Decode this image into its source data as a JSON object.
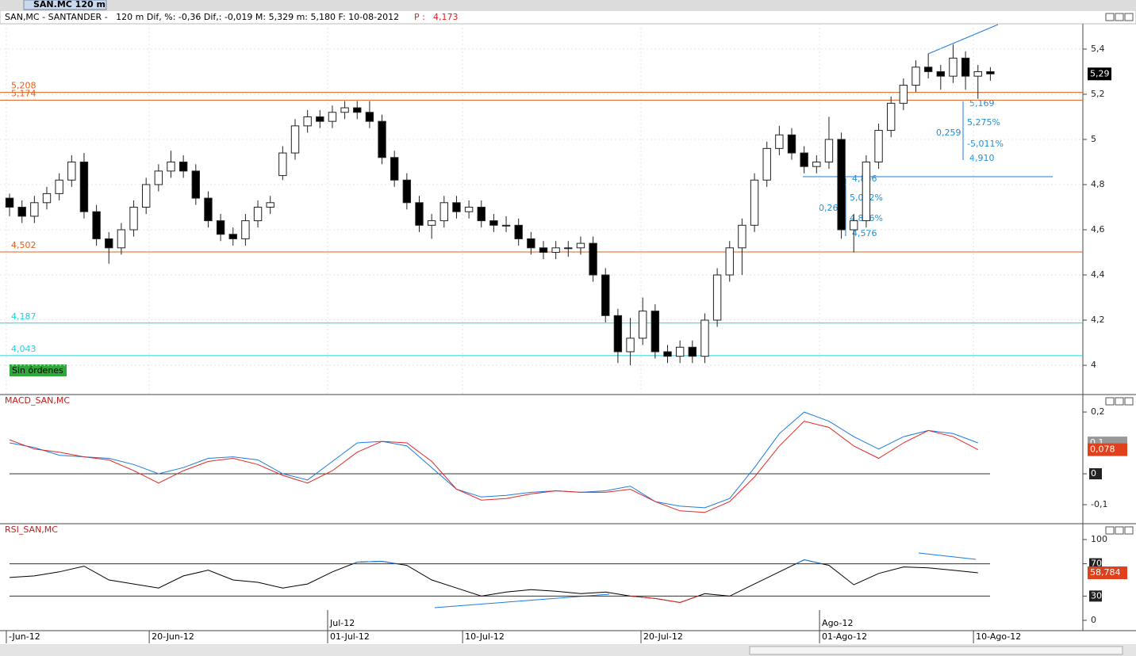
{
  "tab": "SAN.MC 120 m",
  "info": {
    "text": "SAN,MC - SANTANDER -   120 m Dif, %: -0,36 Dif,: -0,019 M: 5,329 m: 5,180 F: 10-08-2012",
    "p_label": "P :",
    "p_value": "4,173"
  },
  "orders": "Sin órdenes",
  "annotations": [
    "5,169",
    "5,275%",
    "0,259",
    "-5,011%",
    "4,910",
    "4,856",
    "5,072%",
    "0,260",
    "4,876%",
    "4,576"
  ],
  "x_axis": {
    "xlim": [
      -0.77,
      86.45
    ],
    "xticks": [
      {
        "value": -0.26,
        "label": "-Jun-12"
      },
      {
        "value": 11.25,
        "label": "20-Jun-12"
      },
      {
        "value": 25.62,
        "label": "01-Jul-12"
      },
      {
        "value": 36.49,
        "label": "10-Jul-12"
      },
      {
        "value": 50.86,
        "label": "20-Jul-12"
      },
      {
        "value": 65.24,
        "label": "01-Ago-12"
      },
      {
        "value": 77.64,
        "label": "10-Ago-12"
      }
    ],
    "month_ticks": [
      {
        "value": 25.62,
        "label": "Jul-12"
      },
      {
        "value": 65.24,
        "label": "Ago-12"
      }
    ]
  },
  "chart_data": [
    {
      "type": "candlestick",
      "ylim": [
        3.874,
        5.512
      ],
      "grid": true,
      "yticks": [
        4,
        {
          "value": 4.2,
          "label": "4,2"
        },
        {
          "value": 4.4,
          "label": "4,4"
        },
        {
          "value": 4.6,
          "label": "4,6"
        },
        {
          "value": 4.8,
          "label": "4,8"
        },
        5,
        {
          "value": 5.2,
          "label": "5,2"
        },
        {
          "value": 5.4,
          "label": "5,4"
        }
      ],
      "levels": [
        {
          "value": 5.208,
          "label": "5,208",
          "color": "#e0601c"
        },
        {
          "value": 5.174,
          "label": "5,174",
          "color": "#e0601c"
        },
        {
          "value": 4.502,
          "label": "4,502",
          "color": "#e0601c"
        },
        {
          "value": 4.187,
          "label": "4,187",
          "color": "#22d0e0"
        },
        {
          "value": 4.043,
          "label": "4,043",
          "color": "#22d0e0"
        }
      ],
      "last": {
        "value": 5.29,
        "label": "5,29"
      },
      "candles": [
        [
          4.74,
          4.76,
          4.66,
          4.7
        ],
        [
          4.7,
          4.73,
          4.63,
          4.66
        ],
        [
          4.66,
          4.75,
          4.63,
          4.72
        ],
        [
          4.72,
          4.79,
          4.69,
          4.76
        ],
        [
          4.76,
          4.85,
          4.73,
          4.82
        ],
        [
          4.82,
          4.93,
          4.79,
          4.9
        ],
        [
          4.9,
          4.94,
          4.65,
          4.68
        ],
        [
          4.68,
          4.71,
          4.53,
          4.56
        ],
        [
          4.56,
          4.59,
          4.45,
          4.52
        ],
        [
          4.52,
          4.63,
          4.49,
          4.6
        ],
        [
          4.6,
          4.73,
          4.57,
          4.7
        ],
        [
          4.7,
          4.83,
          4.67,
          4.8
        ],
        [
          4.8,
          4.89,
          4.77,
          4.86
        ],
        [
          4.86,
          4.95,
          4.83,
          4.9
        ],
        [
          4.9,
          4.93,
          4.83,
          4.86
        ],
        [
          4.86,
          4.89,
          4.71,
          4.74
        ],
        [
          4.74,
          4.77,
          4.61,
          4.64
        ],
        [
          4.64,
          4.67,
          4.55,
          4.58
        ],
        [
          4.58,
          4.61,
          4.53,
          4.56
        ],
        [
          4.56,
          4.67,
          4.53,
          4.64
        ],
        [
          4.64,
          4.73,
          4.61,
          4.7
        ],
        [
          4.7,
          4.75,
          4.67,
          4.72
        ],
        [
          4.84,
          4.97,
          4.82,
          4.94
        ],
        [
          4.94,
          5.09,
          4.91,
          5.06
        ],
        [
          5.06,
          5.13,
          5.03,
          5.1
        ],
        [
          5.1,
          5.13,
          5.05,
          5.08
        ],
        [
          5.08,
          5.15,
          5.05,
          5.12
        ],
        [
          5.12,
          5.17,
          5.09,
          5.14
        ],
        [
          5.14,
          5.17,
          5.09,
          5.12
        ],
        [
          5.12,
          5.17,
          5.05,
          5.08
        ],
        [
          5.08,
          5.11,
          4.89,
          4.92
        ],
        [
          4.92,
          4.95,
          4.79,
          4.82
        ],
        [
          4.82,
          4.85,
          4.69,
          4.72
        ],
        [
          4.72,
          4.75,
          4.59,
          4.62
        ],
        [
          4.62,
          4.67,
          4.56,
          4.64
        ],
        [
          4.64,
          4.75,
          4.61,
          4.72
        ],
        [
          4.72,
          4.75,
          4.65,
          4.68
        ],
        [
          4.68,
          4.73,
          4.65,
          4.7
        ],
        [
          4.7,
          4.73,
          4.61,
          4.64
        ],
        [
          4.64,
          4.67,
          4.59,
          4.62
        ],
        [
          4.62,
          4.66,
          4.59,
          4.62
        ],
        [
          4.62,
          4.65,
          4.53,
          4.56
        ],
        [
          4.56,
          4.59,
          4.49,
          4.52
        ],
        [
          4.52,
          4.55,
          4.47,
          4.5
        ],
        [
          4.5,
          4.55,
          4.47,
          4.52
        ],
        [
          4.52,
          4.55,
          4.48,
          4.52
        ],
        [
          4.52,
          4.57,
          4.49,
          4.54
        ],
        [
          4.54,
          4.57,
          4.37,
          4.4
        ],
        [
          4.4,
          4.43,
          4.19,
          4.22
        ],
        [
          4.22,
          4.25,
          4.01,
          4.06
        ],
        [
          4.06,
          4.21,
          4.0,
          4.12
        ],
        [
          4.12,
          4.3,
          4.09,
          4.24
        ],
        [
          4.24,
          4.27,
          4.03,
          4.06
        ],
        [
          4.06,
          4.09,
          4.01,
          4.04
        ],
        [
          4.04,
          4.11,
          4.01,
          4.08
        ],
        [
          4.08,
          4.11,
          4.01,
          4.04
        ],
        [
          4.04,
          4.23,
          4.01,
          4.2
        ],
        [
          4.2,
          4.43,
          4.17,
          4.4
        ],
        [
          4.4,
          4.55,
          4.37,
          4.52
        ],
        [
          4.52,
          4.65,
          4.4,
          4.62
        ],
        [
          4.62,
          4.85,
          4.59,
          4.82
        ],
        [
          4.82,
          4.99,
          4.79,
          4.96
        ],
        [
          4.96,
          5.06,
          4.93,
          5.02
        ],
        [
          5.02,
          5.05,
          4.91,
          4.94
        ],
        [
          4.94,
          4.97,
          4.85,
          4.88
        ],
        [
          4.88,
          4.93,
          4.85,
          4.9
        ],
        [
          4.9,
          5.1,
          4.87,
          5.0
        ],
        [
          5.0,
          5.03,
          4.56,
          4.6
        ],
        [
          4.6,
          4.67,
          4.5,
          4.64
        ],
        [
          4.64,
          4.93,
          4.61,
          4.9
        ],
        [
          4.9,
          5.07,
          4.87,
          5.04
        ],
        [
          5.04,
          5.19,
          5.01,
          5.16
        ],
        [
          5.16,
          5.27,
          5.13,
          5.24
        ],
        [
          5.24,
          5.35,
          5.21,
          5.32
        ],
        [
          5.32,
          5.38,
          5.27,
          5.3
        ],
        [
          5.3,
          5.33,
          5.22,
          5.28
        ],
        [
          5.28,
          5.42,
          5.25,
          5.36
        ],
        [
          5.36,
          5.39,
          5.22,
          5.28
        ],
        [
          5.28,
          5.33,
          5.18,
          5.3
        ],
        [
          5.3,
          5.32,
          5.26,
          5.29
        ]
      ]
    },
    {
      "type": "line",
      "title": "MACD_SAN,MC",
      "ylim": [
        -0.159,
        0.254
      ],
      "yticks": [
        {
          "value": 0.2,
          "label": "0,2"
        },
        0,
        {
          "value": -0.1,
          "label": "-0,1"
        }
      ],
      "ref_lines": [
        0
      ],
      "x": [
        0,
        2,
        4,
        6,
        8,
        10,
        12,
        14,
        16,
        18,
        20,
        22,
        24,
        26,
        28,
        30,
        32,
        34,
        36,
        38,
        40,
        42,
        44,
        46,
        48,
        50,
        52,
        54,
        56,
        58,
        60,
        62,
        64,
        66,
        68,
        70,
        72,
        74,
        76,
        78
      ],
      "series": [
        {
          "color": "#1e7be0",
          "values": [
            0.1,
            0.085,
            0.06,
            0.055,
            0.05,
            0.03,
            0.0,
            0.02,
            0.05,
            0.055,
            0.045,
            0.0,
            -0.02,
            0.04,
            0.1,
            0.105,
            0.09,
            0.02,
            -0.05,
            -0.075,
            -0.07,
            -0.06,
            -0.055,
            -0.06,
            -0.055,
            -0.04,
            -0.09,
            -0.105,
            -0.11,
            -0.08,
            0.02,
            0.13,
            0.2,
            0.17,
            0.12,
            0.08,
            0.12,
            0.14,
            0.13,
            0.1
          ],
          "last": {
            "value": 0.1,
            "label": "0,1"
          }
        },
        {
          "color": "#e02828",
          "values": [
            0.11,
            0.08,
            0.07,
            0.055,
            0.045,
            0.01,
            -0.03,
            0.01,
            0.04,
            0.05,
            0.03,
            -0.005,
            -0.03,
            0.01,
            0.07,
            0.105,
            0.1,
            0.04,
            -0.05,
            -0.085,
            -0.08,
            -0.065,
            -0.055,
            -0.06,
            -0.06,
            -0.05,
            -0.09,
            -0.12,
            -0.125,
            -0.09,
            -0.01,
            0.09,
            0.17,
            0.15,
            0.09,
            0.05,
            0.1,
            0.14,
            0.12,
            0.078
          ],
          "last": {
            "value": 0.078,
            "label": "0,078"
          }
        }
      ]
    },
    {
      "type": "line",
      "title": "RSI_SAN,MC",
      "ylim": [
        -11.8,
        118.6
      ],
      "yticks": [
        0,
        30,
        70,
        100
      ],
      "ref_lines": [
        70,
        30
      ],
      "x": [
        0,
        2,
        4,
        6,
        8,
        10,
        12,
        14,
        16,
        18,
        20,
        22,
        24,
        26,
        28,
        30,
        32,
        34,
        36,
        38,
        40,
        42,
        44,
        46,
        48,
        50,
        52,
        54,
        56,
        58,
        60,
        62,
        64,
        66,
        68,
        70,
        72,
        74,
        76,
        78
      ],
      "series": [
        {
          "color": "#000000",
          "values": [
            53,
            55,
            60,
            67,
            50,
            45,
            40,
            55,
            62,
            50,
            47,
            40,
            45,
            60,
            72,
            73,
            68,
            50,
            40,
            30,
            35,
            38,
            36,
            33,
            35,
            30,
            27,
            22,
            33,
            30,
            45,
            60,
            75,
            68,
            44,
            58,
            66,
            65,
            62,
            58.784
          ],
          "last": {
            "value": 58.784,
            "label": "58,784"
          }
        }
      ],
      "above_color": "#1e7be0",
      "below_color": "#e02828"
    }
  ]
}
